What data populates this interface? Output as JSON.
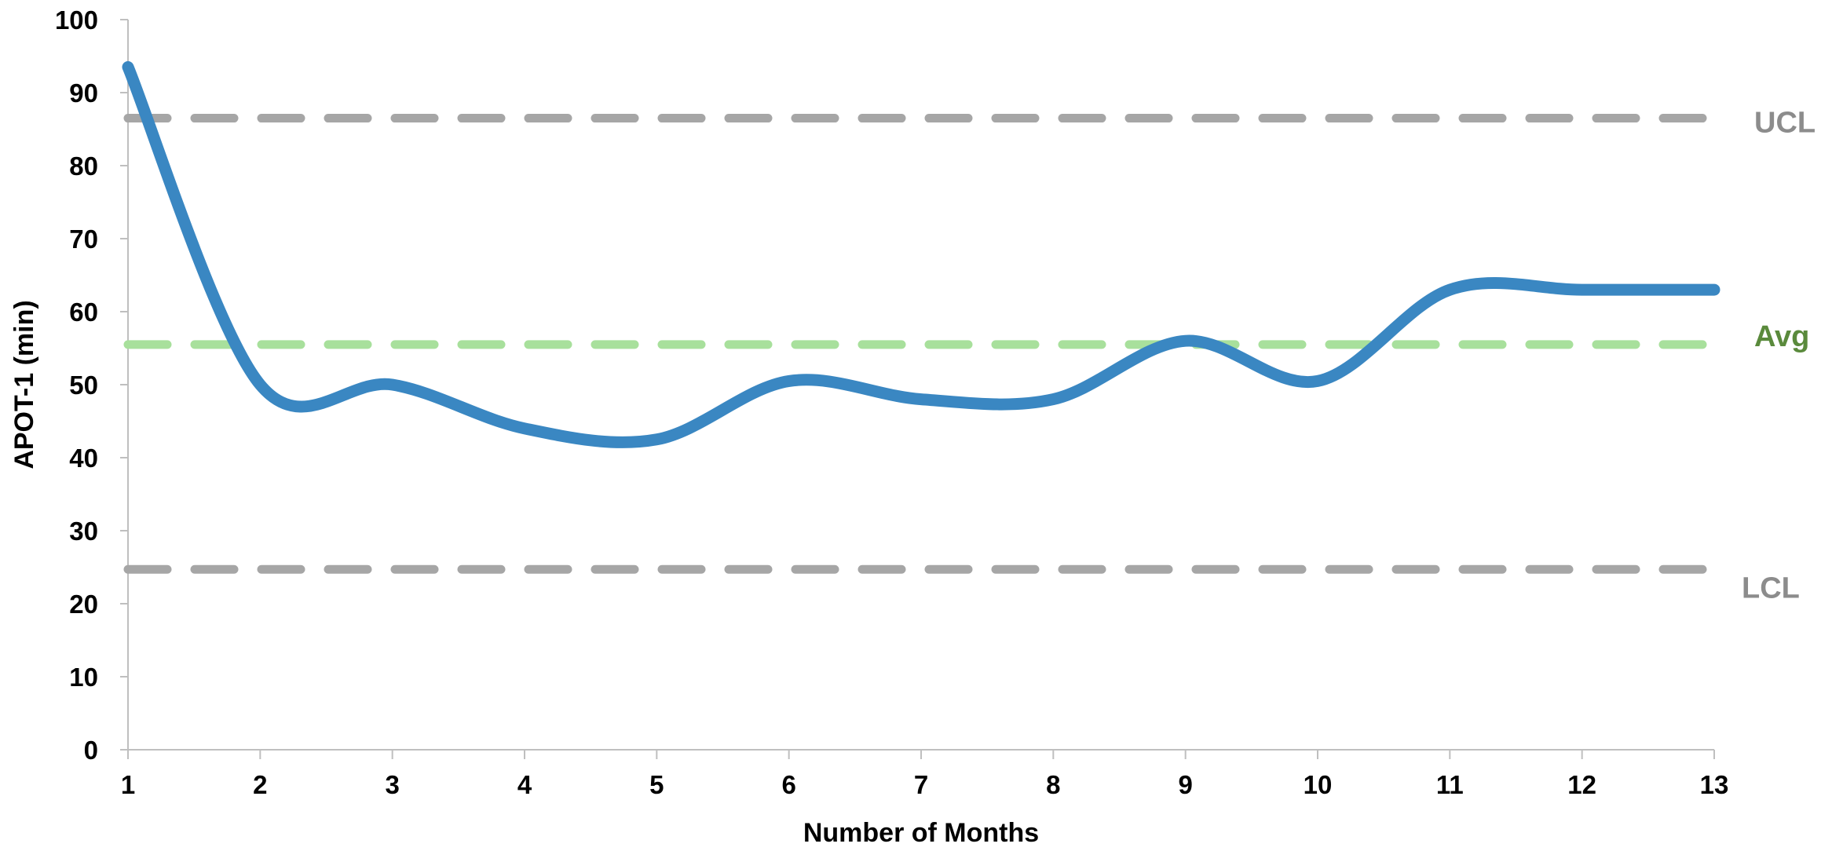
{
  "chart_data": {
    "type": "line",
    "title": "",
    "xlabel": "Number of Months",
    "ylabel": "APOT-1 (min)",
    "x": [
      1,
      2,
      3,
      4,
      5,
      6,
      7,
      8,
      9,
      10,
      11,
      12,
      13
    ],
    "x_tick_labels": [
      "1",
      "2",
      "3",
      "4",
      "5",
      "6",
      "7",
      "8",
      "9",
      "10",
      "11",
      "12",
      "13"
    ],
    "y_tick_labels": [
      "0",
      "10",
      "20",
      "30",
      "40",
      "50",
      "60",
      "70",
      "80",
      "90",
      "100"
    ],
    "xlim": [
      1,
      13
    ],
    "ylim": [
      0,
      100
    ],
    "grid": false,
    "smooth": true,
    "series": [
      {
        "values": [
          93.5,
          50,
          50,
          44,
          42.5,
          50.5,
          48,
          48,
          56,
          50.5,
          63,
          63,
          63
        ],
        "color": "#3a87c2"
      }
    ],
    "reference_lines": [
      {
        "label": "UCL",
        "y": 86.5,
        "color": "#a6a6a6",
        "label_color": "#8c8c8c",
        "style": "dashed"
      },
      {
        "label": "Avg",
        "y": 55.5,
        "color": "#a8e09c",
        "label_color": "#5a8a3c",
        "style": "dashed"
      },
      {
        "label": "LCL",
        "y": 24.7,
        "color": "#a6a6a6",
        "label_color": "#8c8c8c",
        "style": "dashed"
      }
    ]
  }
}
